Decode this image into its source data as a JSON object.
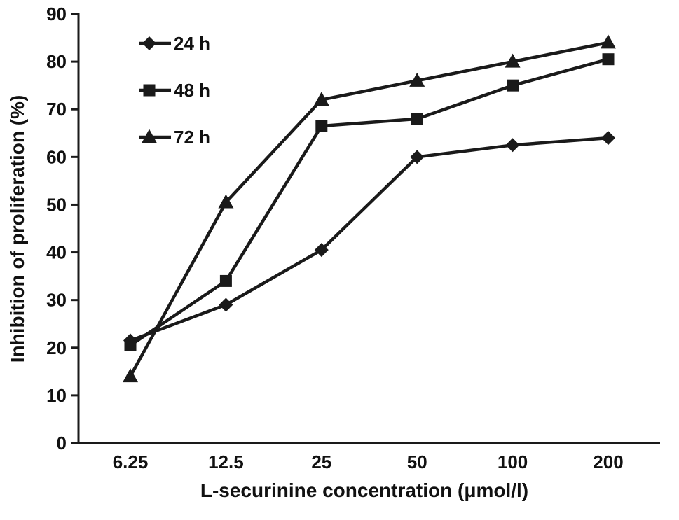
{
  "chart_data": {
    "type": "line",
    "categories": [
      "6.25",
      "12.5",
      "25",
      "50",
      "100",
      "200"
    ],
    "series": [
      {
        "name": "24 h",
        "marker": "diamond",
        "values": [
          21.5,
          29,
          40.5,
          60,
          62.5,
          64
        ]
      },
      {
        "name": "48 h",
        "marker": "square",
        "values": [
          20.5,
          34,
          66.5,
          68,
          75,
          80.5
        ]
      },
      {
        "name": "72 h",
        "marker": "triangle",
        "values": [
          14,
          50.5,
          72,
          76,
          80,
          84
        ]
      }
    ],
    "title": "",
    "xlabel": "L-securinine concentration (μmol/l)",
    "ylabel": "Inhibition of proliferation (%)",
    "ylim": [
      0,
      90
    ],
    "ytick_step": 10,
    "grid": false,
    "legend_position": "top-left",
    "line_color": "#1a1a1a",
    "background_color": "#ffffff"
  }
}
